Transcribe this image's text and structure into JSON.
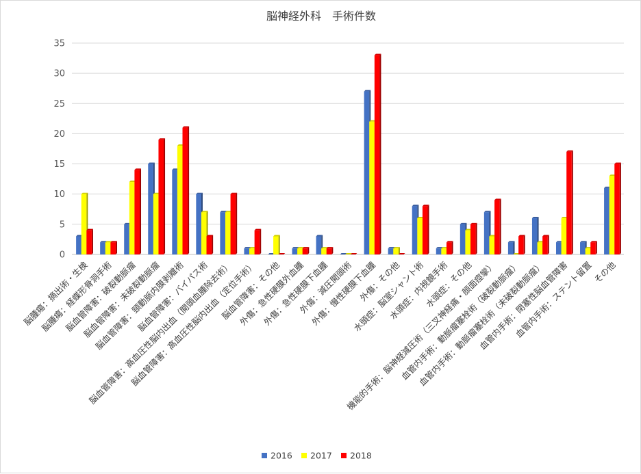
{
  "chart_data": {
    "type": "bar",
    "title": "脳神経外科　手術件数",
    "xlabel": "",
    "ylabel": "",
    "ylim": [
      0,
      35
    ],
    "yticks": [
      0,
      5,
      10,
      15,
      20,
      25,
      30,
      35
    ],
    "grid": true,
    "legend_position": "bottom",
    "categories": [
      "脳腫瘍：摘出術・生検",
      "脳腫瘍：経蝶形骨洞手術",
      "脳血管障害：破裂動脈瘤",
      "脳血管障害：未破裂動脈瘤",
      "脳血管障害：頸動脈内膜剥離術",
      "脳血管障害：バイパス術",
      "脳血管障害：高血圧性脳内出血（開頭血腫除去術）",
      "脳血管障害：高血圧性脳内出血（定位手術）",
      "脳血管障害：その他",
      "外傷：急性硬膜外血腫",
      "外傷：急性硬膜下血腫",
      "外傷：減圧開頭術",
      "外傷：慢性硬膜下血腫",
      "外傷：その他",
      "水頭症：脳室シャント術",
      "水頭症：内視鏡手術",
      "水頭症：その他",
      "機能的手術：脳神経減圧術（三叉神経痛・顔面痙攣）",
      "血管内手術：動脈瘤塞栓術（破裂動脈瘤）",
      "血管内手術：動脈瘤塞栓術（未破裂動脈瘤）",
      "血管内手術：閉塞性脳血管障害",
      "血管内手術：ステント留置",
      "その他"
    ],
    "series": [
      {
        "name": "2016",
        "color": "#4472c4",
        "values": [
          3,
          2,
          5,
          15,
          14,
          10,
          7,
          1,
          0,
          1,
          3,
          0,
          27,
          1,
          8,
          1,
          5,
          7,
          2,
          6,
          2,
          2,
          11
        ]
      },
      {
        "name": "2017",
        "color": "#ffff00",
        "values": [
          10,
          2,
          12,
          10,
          18,
          7,
          7,
          1,
          3,
          1,
          1,
          0,
          22,
          1,
          6,
          1,
          4,
          3,
          0,
          2,
          6,
          1,
          13
        ]
      },
      {
        "name": "2018",
        "color": "#ff0000",
        "values": [
          4,
          2,
          14,
          19,
          21,
          3,
          10,
          4,
          0,
          1,
          1,
          0,
          33,
          0,
          8,
          2,
          5,
          9,
          3,
          3,
          17,
          2,
          15
        ]
      }
    ]
  }
}
